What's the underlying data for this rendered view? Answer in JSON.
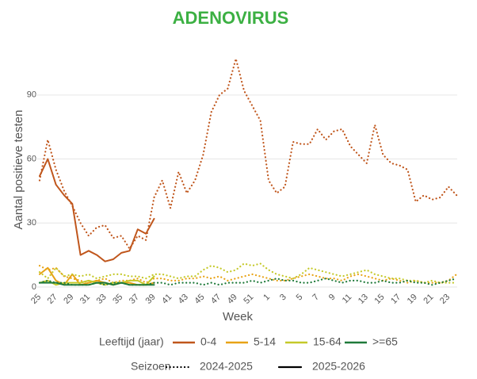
{
  "chart_data": {
    "type": "line",
    "title": "ADENOVIRUS",
    "x_label": "Week",
    "y_label": "Aantal positieve testen",
    "categories": [
      "25",
      null,
      "27",
      null,
      "29",
      null,
      "31",
      null,
      "33",
      null,
      "35",
      null,
      "37",
      null,
      "39",
      null,
      "41",
      null,
      "43",
      null,
      "45",
      null,
      "47",
      null,
      "49",
      null,
      "51",
      null,
      "1",
      null,
      "3",
      null,
      "5",
      null,
      "7",
      null,
      "9",
      null,
      "11",
      null,
      "13",
      null,
      "15",
      null,
      "17",
      null,
      "19",
      null,
      "21",
      null,
      "23",
      null
    ],
    "ylim": [
      0,
      110
    ],
    "yticks": [
      0,
      30,
      60,
      90
    ],
    "grid": true,
    "legend_age_title": "Leeftijd (jaar)",
    "legend_season_title": "Seizoen",
    "seasons": [
      {
        "name": "2024-2025",
        "dash": "dotted"
      },
      {
        "name": "2025-2026",
        "dash": "solid"
      }
    ],
    "groups": [
      {
        "name": "0-4",
        "color": "#c0561c",
        "seasons": [
          [
            50,
            69,
            55,
            45,
            38,
            30,
            24,
            28,
            29,
            23,
            24,
            18,
            24,
            22,
            42,
            50,
            37,
            54,
            44,
            50,
            62,
            82,
            90,
            93,
            107,
            92,
            85,
            78,
            50,
            44,
            47,
            68,
            67,
            67,
            74,
            69,
            73,
            74,
            66,
            62,
            58,
            76,
            62,
            58,
            57,
            55,
            40,
            43,
            41,
            42,
            47,
            43
          ],
          [
            52,
            60,
            48,
            43,
            39,
            15,
            17,
            15,
            12,
            13,
            16,
            17,
            27,
            25,
            32,
            null,
            null,
            null,
            null,
            null,
            null,
            null,
            null,
            null,
            null,
            null,
            null,
            null,
            null,
            null,
            null,
            null,
            null,
            null,
            null,
            null,
            null,
            null,
            null,
            null,
            null,
            null,
            null,
            null,
            null,
            null,
            null,
            null,
            null,
            null,
            null,
            null
          ]
        ]
      },
      {
        "name": "5-14",
        "color": "#e8a317",
        "seasons": [
          [
            10,
            8,
            9,
            5,
            4,
            3,
            2,
            3,
            4,
            2,
            3,
            3,
            4,
            2,
            4,
            4,
            3,
            3,
            4,
            4,
            5,
            4,
            5,
            3,
            4,
            5,
            6,
            5,
            4,
            3,
            3,
            4,
            5,
            6,
            5,
            4,
            4,
            3,
            5,
            6,
            5,
            4,
            3,
            4,
            3,
            2,
            3,
            2,
            2,
            2,
            3,
            6
          ],
          [
            6,
            9,
            3,
            1,
            6,
            1,
            2,
            3,
            2,
            1,
            2,
            2,
            1,
            1,
            2,
            null,
            null,
            null,
            null,
            null,
            null,
            null,
            null,
            null,
            null,
            null,
            null,
            null,
            null,
            null,
            null,
            null,
            null,
            null,
            null,
            null,
            null,
            null,
            null,
            null,
            null,
            null,
            null,
            null,
            null,
            null,
            null,
            null,
            null,
            null,
            null,
            null
          ]
        ]
      },
      {
        "name": "15-64",
        "color": "#c5c92a",
        "seasons": [
          [
            7,
            4,
            9,
            5,
            6,
            5,
            6,
            4,
            5,
            6,
            6,
            5,
            5,
            4,
            6,
            6,
            5,
            4,
            5,
            5,
            8,
            10,
            9,
            7,
            8,
            11,
            10,
            11,
            8,
            6,
            5,
            4,
            6,
            9,
            8,
            7,
            6,
            5,
            6,
            7,
            8,
            6,
            5,
            4,
            4,
            3,
            3,
            2,
            3,
            2,
            2,
            2
          ],
          [
            2,
            3,
            1,
            2,
            2,
            2,
            3,
            2,
            1,
            2,
            2,
            3,
            3,
            1,
            5,
            null,
            null,
            null,
            null,
            null,
            null,
            null,
            null,
            null,
            null,
            null,
            null,
            null,
            null,
            null,
            null,
            null,
            null,
            null,
            null,
            null,
            null,
            null,
            null,
            null,
            null,
            null,
            null,
            null,
            null,
            null,
            null,
            null,
            null,
            null,
            null,
            null
          ]
        ]
      },
      {
        "name": ">=65",
        "color": "#1f7a3a",
        "seasons": [
          [
            2,
            3,
            2,
            2,
            1,
            1,
            1,
            2,
            1,
            2,
            2,
            1,
            1,
            1,
            2,
            2,
            1,
            2,
            2,
            2,
            1,
            2,
            1,
            2,
            2,
            2,
            3,
            2,
            3,
            4,
            3,
            3,
            2,
            2,
            3,
            4,
            3,
            2,
            3,
            3,
            2,
            2,
            3,
            2,
            2,
            3,
            2,
            2,
            1,
            2,
            3,
            4
          ],
          [
            2,
            2,
            2,
            1,
            1,
            1,
            1,
            2,
            2,
            1,
            2,
            1,
            1,
            1,
            1,
            null,
            null,
            null,
            null,
            null,
            null,
            null,
            null,
            null,
            null,
            null,
            null,
            null,
            null,
            null,
            null,
            null,
            null,
            null,
            null,
            null,
            null,
            null,
            null,
            null,
            null,
            null,
            null,
            null,
            null,
            null,
            null,
            null,
            null,
            null,
            null,
            null
          ]
        ]
      }
    ]
  }
}
